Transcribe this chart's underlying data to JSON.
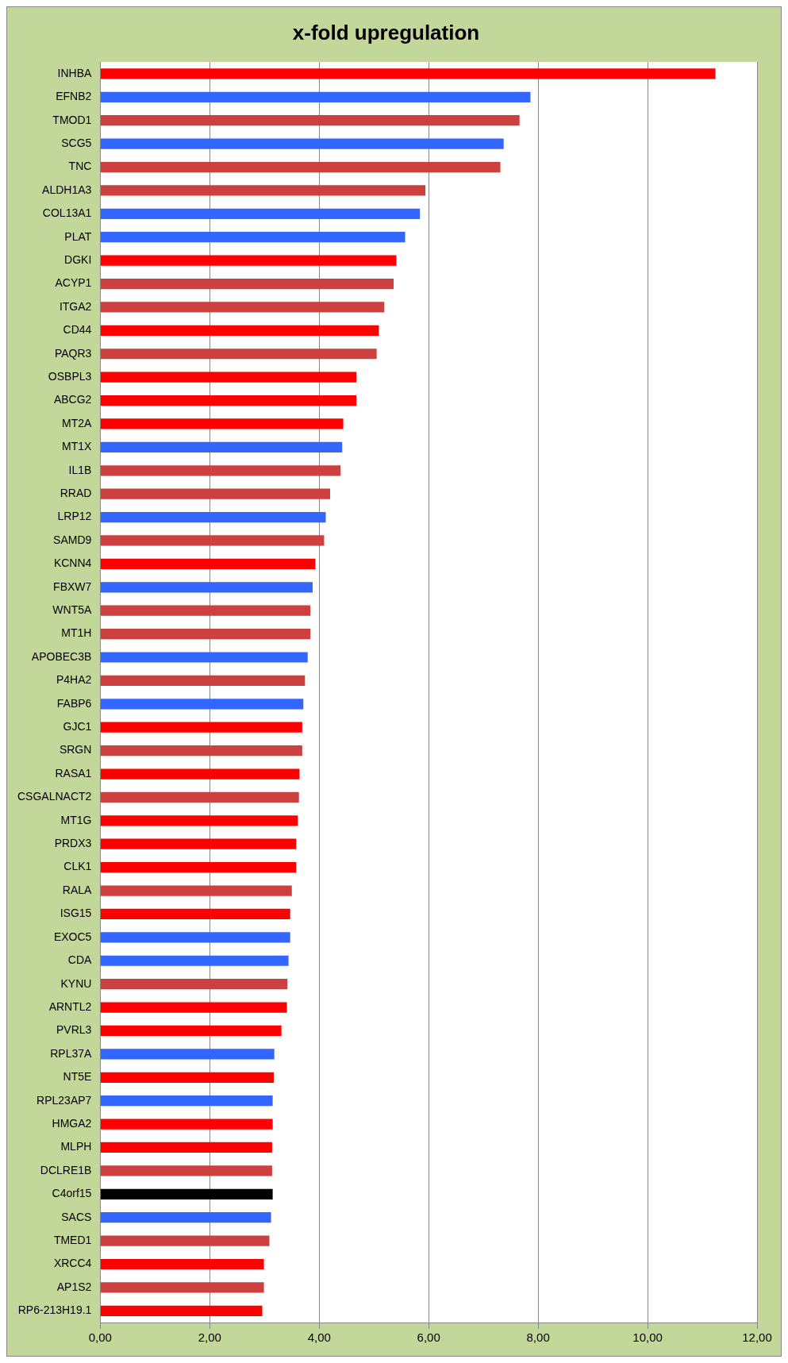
{
  "chart_data": {
    "type": "bar",
    "orientation": "horizontal",
    "title": "x-fold upregulation",
    "categories": [
      "INHBA",
      "EFNB2",
      "TMOD1",
      "SCG5",
      "TNC",
      "ALDH1A3",
      "COL13A1",
      "PLAT",
      "DGKI",
      "ACYP1",
      "ITGA2",
      "CD44",
      "PAQR3",
      "OSBPL3",
      "ABCG2",
      "MT2A",
      "MT1X",
      "IL1B",
      "RRAD",
      "LRP12",
      "SAMD9",
      "KCNN4",
      "FBXW7",
      "WNT5A",
      "MT1H",
      "APOBEC3B",
      "P4HA2",
      "FABP6",
      "GJC1",
      "SRGN",
      "RASA1",
      "CSGALNACT2",
      "MT1G",
      "PRDX3",
      "CLK1",
      "RALA",
      "ISG15",
      "EXOC5",
      "CDA",
      "KYNU",
      "ARNTL2",
      "PVRL3",
      "RPL37A",
      "NT5E",
      "RPL23AP7",
      "HMGA2",
      "MLPH",
      "DCLRE1B",
      "C4orf15",
      "SACS",
      "TMED1",
      "XRCC4",
      "AP1S2",
      "RP6-213H19.1"
    ],
    "values": [
      11.24,
      7.86,
      7.66,
      7.37,
      7.31,
      5.94,
      5.84,
      5.57,
      5.41,
      5.36,
      5.19,
      5.09,
      5.05,
      4.68,
      4.68,
      4.44,
      4.42,
      4.39,
      4.2,
      4.12,
      4.09,
      3.93,
      3.88,
      3.84,
      3.84,
      3.79,
      3.74,
      3.71,
      3.69,
      3.69,
      3.64,
      3.63,
      3.61,
      3.58,
      3.58,
      3.5,
      3.47,
      3.47,
      3.44,
      3.42,
      3.41,
      3.31,
      3.18,
      3.17,
      3.15,
      3.15,
      3.14,
      3.14,
      3.15,
      3.12,
      3.09,
      2.99,
      2.99,
      2.96
    ],
    "colors": [
      "#ff0000",
      "#3366ff",
      "#cc4040",
      "#3366ff",
      "#cc4040",
      "#cc4040",
      "#3366ff",
      "#3366ff",
      "#ff0000",
      "#cc4040",
      "#cc4040",
      "#ff0000",
      "#cc4040",
      "#ff0000",
      "#ff0000",
      "#ff0000",
      "#3366ff",
      "#cc4040",
      "#cc4040",
      "#3366ff",
      "#cc4040",
      "#ff0000",
      "#3366ff",
      "#cc4040",
      "#cc4040",
      "#3366ff",
      "#cc4040",
      "#3366ff",
      "#ff0000",
      "#cc4040",
      "#ff0000",
      "#cc4040",
      "#ff0000",
      "#ff0000",
      "#ff0000",
      "#cc4040",
      "#ff0000",
      "#3366ff",
      "#3366ff",
      "#cc4040",
      "#ff0000",
      "#ff0000",
      "#3366ff",
      "#ff0000",
      "#3366ff",
      "#ff0000",
      "#ff0000",
      "#cc4040",
      "#000000",
      "#3366ff",
      "#cc4040",
      "#ff0000",
      "#cc4040",
      "#ff0000"
    ],
    "xlim": [
      0,
      12
    ],
    "xticks": [
      {
        "value": 0,
        "label": "0,00"
      },
      {
        "value": 2,
        "label": "2,00"
      },
      {
        "value": 4,
        "label": "4,00"
      },
      {
        "value": 6,
        "label": "6,00"
      },
      {
        "value": 8,
        "label": "8,00"
      },
      {
        "value": 10,
        "label": "10,00"
      },
      {
        "value": 12,
        "label": "12,00"
      }
    ],
    "grid": "x",
    "legend": false
  }
}
